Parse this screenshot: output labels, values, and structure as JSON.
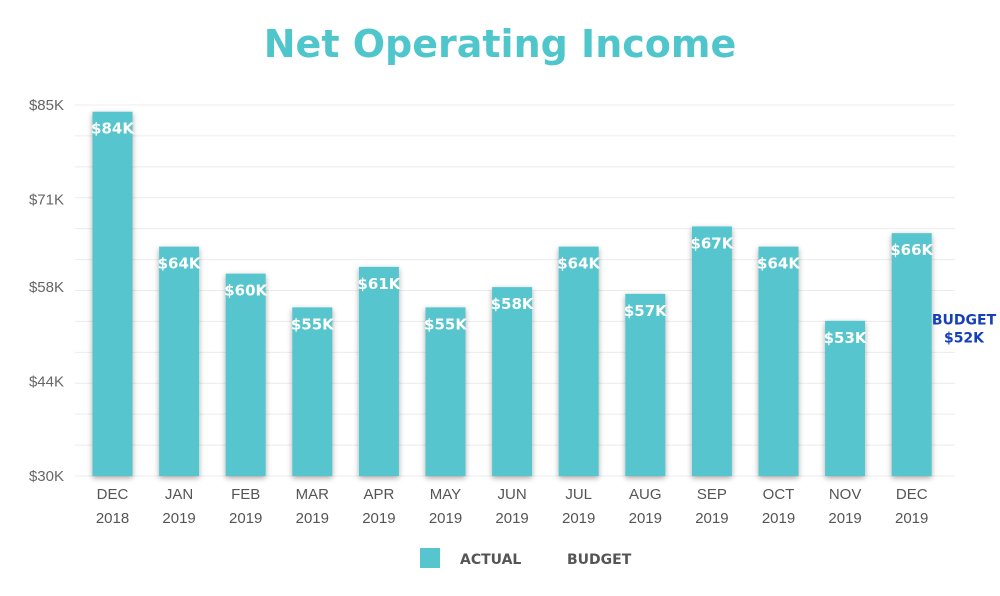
{
  "chart_data": {
    "type": "bar",
    "title": "Net Operating Income",
    "categories": [
      [
        "DEC",
        "2018"
      ],
      [
        "JAN",
        "2019"
      ],
      [
        "FEB",
        "2019"
      ],
      [
        "MAR",
        "2019"
      ],
      [
        "APR",
        "2019"
      ],
      [
        "MAY",
        "2019"
      ],
      [
        "JUN",
        "2019"
      ],
      [
        "JUL",
        "2019"
      ],
      [
        "AUG",
        "2019"
      ],
      [
        "SEP",
        "2019"
      ],
      [
        "OCT",
        "2019"
      ],
      [
        "NOV",
        "2019"
      ],
      [
        "DEC",
        "2019"
      ]
    ],
    "series": [
      {
        "name": "ACTUAL",
        "values": [
          84,
          64,
          60,
          55,
          61,
          55,
          58,
          64,
          57,
          67,
          64,
          53,
          66
        ],
        "labels": [
          "$84K",
          "$64K",
          "$60K",
          "$55K",
          "$61K",
          "$55K",
          "$58K",
          "$64K",
          "$57K",
          "$67K",
          "$64K",
          "$53K",
          "$66K"
        ]
      }
    ],
    "budget": {
      "name": "BUDGET",
      "value": 52,
      "label_line1": "BUDGET",
      "label_line2": "$52K"
    },
    "ylim": [
      30,
      85
    ],
    "yticks": [
      30,
      44,
      58,
      71,
      85
    ],
    "ytick_labels": [
      "$30K",
      "$44K",
      "$58K",
      "$71K",
      "$85K"
    ],
    "legend": {
      "position": "bottom-center",
      "items": [
        "ACTUAL",
        "BUDGET"
      ]
    },
    "colors": {
      "bar": "#56c5cd",
      "budget": "#1540b8",
      "title": "#4fc6cc"
    },
    "grid": true
  }
}
